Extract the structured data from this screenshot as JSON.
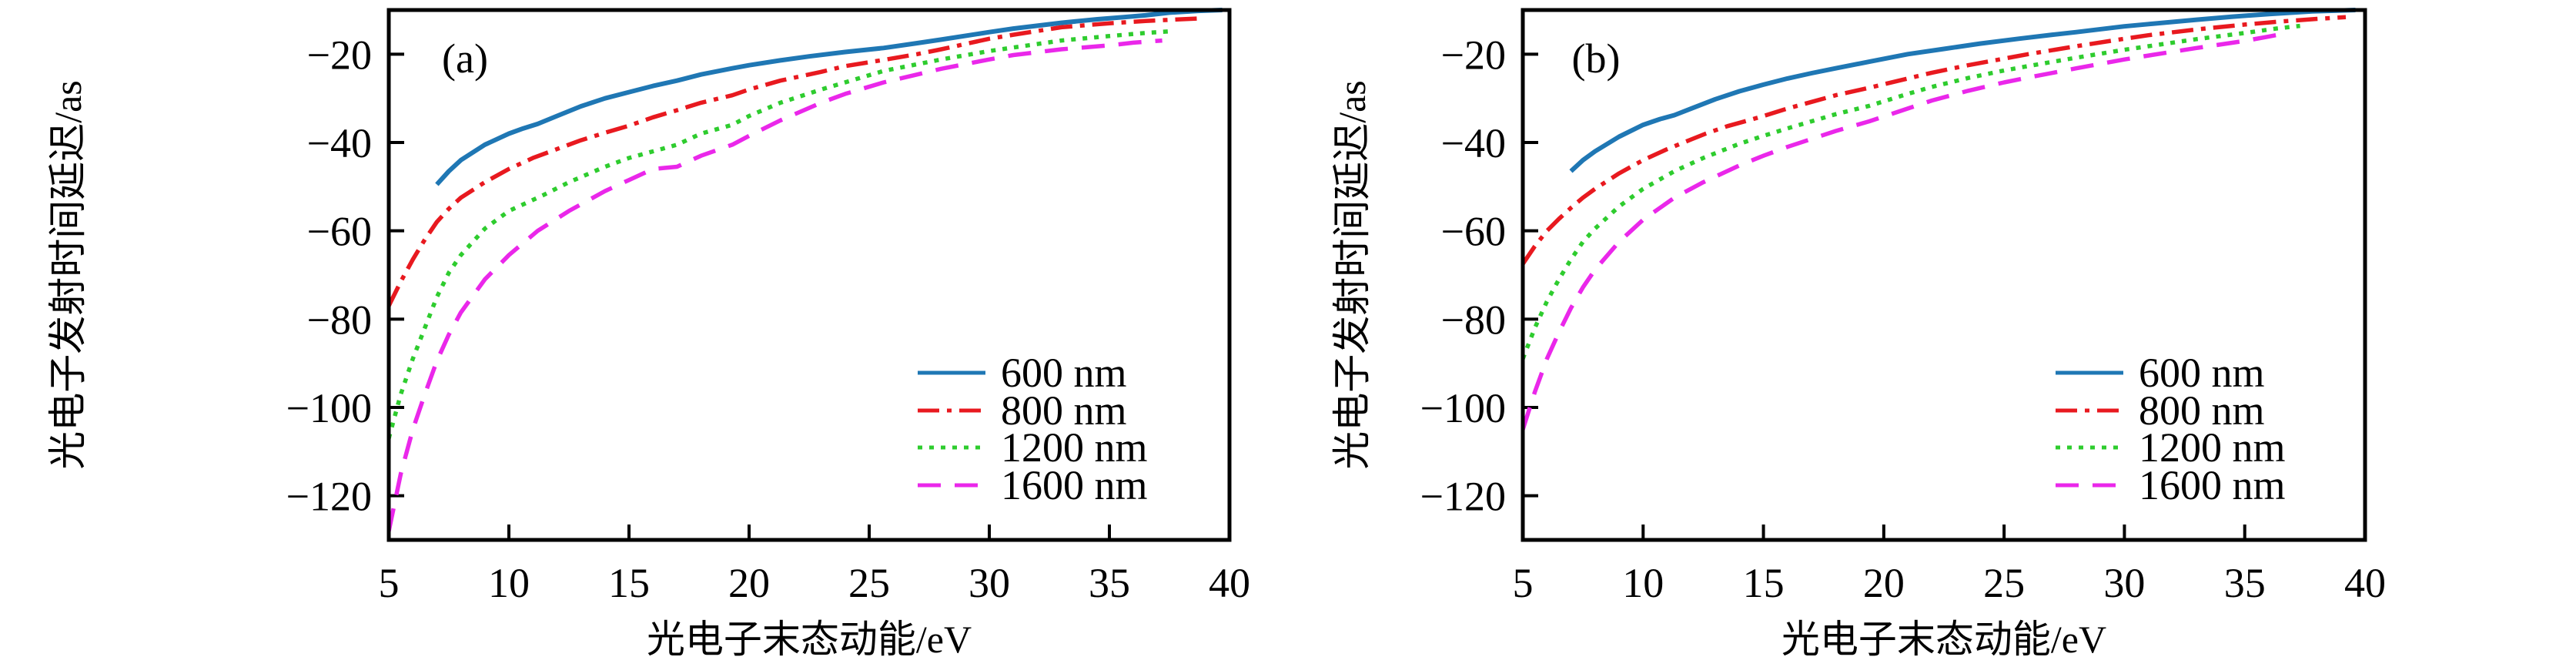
{
  "figure": {
    "background": "#ffffff",
    "text_color": "#000000"
  },
  "chart_data": [
    {
      "panel_label": "(a)",
      "type": "line",
      "xlabel": "光电子末态动能/eV",
      "ylabel": "光电子发射时间延迟/as",
      "xlim": [
        5,
        40
      ],
      "ylim": [
        -130,
        -10
      ],
      "xticks": [
        5,
        10,
        15,
        20,
        25,
        30,
        35,
        40
      ],
      "yticks": [
        -20,
        -40,
        -60,
        -80,
        -100,
        -120
      ],
      "grid": false,
      "legend": {
        "position": "right-center"
      },
      "series": [
        {
          "name": "600 nm",
          "color": "#1f77b4",
          "line_style": "solid",
          "points": [
            [
              7,
              -49.5
            ],
            [
              7.5,
              -46.5
            ],
            [
              8,
              -44
            ],
            [
              9,
              -40.5
            ],
            [
              10,
              -38
            ],
            [
              10.6,
              -36.8
            ],
            [
              11.2,
              -35.8
            ],
            [
              12,
              -34
            ],
            [
              13,
              -31.8
            ],
            [
              14,
              -30
            ],
            [
              15,
              -28.6
            ],
            [
              16,
              -27.2
            ],
            [
              17,
              -26
            ],
            [
              18,
              -24.6
            ],
            [
              19.3,
              -23.2
            ],
            [
              20,
              -22.5
            ],
            [
              21.3,
              -21.4
            ],
            [
              22.5,
              -20.5
            ],
            [
              24,
              -19.5
            ],
            [
              25.6,
              -18.6
            ],
            [
              27,
              -17.5
            ],
            [
              28,
              -16.7
            ],
            [
              30,
              -15
            ],
            [
              31,
              -14.2
            ],
            [
              33,
              -12.9
            ],
            [
              34.5,
              -12.1
            ],
            [
              35.6,
              -11.6
            ],
            [
              36.5,
              -11.2
            ],
            [
              37.5,
              -10.6
            ],
            [
              38.7,
              -10.2
            ],
            [
              39.7,
              -10
            ]
          ]
        },
        {
          "name": "800 nm",
          "color": "#e8191f",
          "line_style": "dashdot",
          "points": [
            [
              5,
              -77
            ],
            [
              5.5,
              -71.5
            ],
            [
              6,
              -66.5
            ],
            [
              6.5,
              -62
            ],
            [
              7,
              -58
            ],
            [
              7.5,
              -55
            ],
            [
              8,
              -52.5
            ],
            [
              9,
              -49
            ],
            [
              10,
              -46
            ],
            [
              11,
              -43.5
            ],
            [
              12,
              -41.5
            ],
            [
              13,
              -39.5
            ],
            [
              14,
              -37.8
            ],
            [
              15,
              -36.2
            ],
            [
              16,
              -34.3
            ],
            [
              17,
              -32.7
            ],
            [
              18,
              -31
            ],
            [
              19.3,
              -29.3
            ],
            [
              20,
              -28
            ],
            [
              21.3,
              -26
            ],
            [
              23,
              -24
            ],
            [
              24,
              -22.7
            ],
            [
              25.6,
              -21.3
            ],
            [
              27,
              -20
            ],
            [
              28,
              -18.9
            ],
            [
              30,
              -16.5
            ],
            [
              31,
              -15.6
            ],
            [
              33,
              -13.9
            ],
            [
              35,
              -13
            ],
            [
              36.5,
              -12.5
            ],
            [
              38,
              -12.1
            ],
            [
              38.8,
              -11.9
            ]
          ]
        },
        {
          "name": "1200 nm",
          "color": "#2ecc2e",
          "line_style": "dotted",
          "points": [
            [
              5,
              -107
            ],
            [
              5.5,
              -97
            ],
            [
              6,
              -89
            ],
            [
              6.5,
              -82
            ],
            [
              7,
              -75
            ],
            [
              7.5,
              -69.5
            ],
            [
              8,
              -65.5
            ],
            [
              9,
              -59.5
            ],
            [
              10,
              -55.5
            ],
            [
              11.4,
              -52
            ],
            [
              12.5,
              -49
            ],
            [
              14,
              -45.5
            ],
            [
              15,
              -43.5
            ],
            [
              16,
              -42
            ],
            [
              17,
              -40.5
            ],
            [
              18,
              -38
            ],
            [
              19.3,
              -36
            ],
            [
              20,
              -34
            ],
            [
              21.3,
              -31
            ],
            [
              23,
              -28
            ],
            [
              25.6,
              -23.8
            ],
            [
              28,
              -21.2
            ],
            [
              30,
              -19.3
            ],
            [
              31,
              -18.5
            ],
            [
              33,
              -16.9
            ],
            [
              35,
              -15.9
            ],
            [
              36.5,
              -15.2
            ],
            [
              37.6,
              -14.8
            ]
          ]
        },
        {
          "name": "1600 nm",
          "color": "#ea27ea",
          "line_style": "dashed",
          "points": [
            [
              5,
              -128
            ],
            [
              5.5,
              -115
            ],
            [
              6,
              -105
            ],
            [
              6.5,
              -97
            ],
            [
              7,
              -89.5
            ],
            [
              7.5,
              -83.5
            ],
            [
              8,
              -78.5
            ],
            [
              9,
              -71
            ],
            [
              10,
              -65.5
            ],
            [
              11.2,
              -60
            ],
            [
              12.5,
              -55.5
            ],
            [
              14,
              -51
            ],
            [
              15,
              -48.5
            ],
            [
              16,
              -46
            ],
            [
              17,
              -45.5
            ],
            [
              18,
              -43
            ],
            [
              19.3,
              -40.5
            ],
            [
              20,
              -38.5
            ],
            [
              21.3,
              -35
            ],
            [
              23,
              -31
            ],
            [
              24,
              -29
            ],
            [
              25.6,
              -26.4
            ],
            [
              28,
              -23.3
            ],
            [
              30,
              -21.2
            ],
            [
              31,
              -20.2
            ],
            [
              33,
              -18.9
            ],
            [
              35,
              -18
            ],
            [
              36,
              -17.4
            ],
            [
              37.2,
              -16.9
            ]
          ]
        }
      ]
    },
    {
      "panel_label": "(b)",
      "type": "line",
      "xlabel": "光电子末态动能/eV",
      "ylabel": "光电子发射时间延迟/as",
      "xlim": [
        5,
        40
      ],
      "ylim": [
        -130,
        -10
      ],
      "xticks": [
        5,
        10,
        15,
        20,
        25,
        30,
        35,
        40
      ],
      "yticks": [
        -20,
        -40,
        -60,
        -80,
        -100,
        -120
      ],
      "grid": false,
      "legend": {
        "position": "right-center"
      },
      "series": [
        {
          "name": "600 nm",
          "color": "#1f77b4",
          "line_style": "solid",
          "points": [
            [
              7,
              -46.5
            ],
            [
              7.5,
              -44
            ],
            [
              8,
              -42
            ],
            [
              9,
              -38.7
            ],
            [
              10,
              -36
            ],
            [
              10.7,
              -34.7
            ],
            [
              11.3,
              -33.8
            ],
            [
              12,
              -32.3
            ],
            [
              13,
              -30.2
            ],
            [
              14,
              -28.4
            ],
            [
              15,
              -26.9
            ],
            [
              16,
              -25.5
            ],
            [
              17,
              -24.3
            ],
            [
              18,
              -23.2
            ],
            [
              19.4,
              -21.7
            ],
            [
              21,
              -20
            ],
            [
              22.5,
              -18.8
            ],
            [
              24,
              -17.6
            ],
            [
              25.6,
              -16.5
            ],
            [
              27,
              -15.6
            ],
            [
              28,
              -15
            ],
            [
              30,
              -13.7
            ],
            [
              31,
              -13.2
            ],
            [
              33,
              -12.2
            ],
            [
              34.5,
              -11.5
            ],
            [
              36,
              -10.9
            ],
            [
              37.8,
              -10.3
            ],
            [
              39.6,
              -10
            ]
          ]
        },
        {
          "name": "800 nm",
          "color": "#e8191f",
          "line_style": "dashdot",
          "points": [
            [
              5,
              -67.5
            ],
            [
              5.5,
              -63.5
            ],
            [
              6,
              -60
            ],
            [
              6.5,
              -57.3
            ],
            [
              7,
              -54.8
            ],
            [
              7.5,
              -52.5
            ],
            [
              8,
              -50.5
            ],
            [
              9,
              -47
            ],
            [
              10,
              -44
            ],
            [
              11,
              -41.5
            ],
            [
              12,
              -39.3
            ],
            [
              12.6,
              -38
            ],
            [
              13.5,
              -36.3
            ],
            [
              14.5,
              -34.8
            ],
            [
              15,
              -34
            ],
            [
              16,
              -32.3
            ],
            [
              17,
              -30.8
            ],
            [
              18,
              -29.3
            ],
            [
              19.4,
              -27.6
            ],
            [
              21,
              -25.5
            ],
            [
              22,
              -24.2
            ],
            [
              23.5,
              -22.5
            ],
            [
              25,
              -21
            ],
            [
              26,
              -20
            ],
            [
              28,
              -18.2
            ],
            [
              30,
              -16.5
            ],
            [
              31,
              -15.7
            ],
            [
              33,
              -14.4
            ],
            [
              35,
              -13.3
            ],
            [
              36.5,
              -12.6
            ],
            [
              38,
              -12
            ],
            [
              39.2,
              -11.6
            ]
          ]
        },
        {
          "name": "1200 nm",
          "color": "#2ecc2e",
          "line_style": "dotted",
          "points": [
            [
              5,
              -89
            ],
            [
              5.5,
              -82
            ],
            [
              6,
              -76
            ],
            [
              6.5,
              -71
            ],
            [
              7,
              -66.5
            ],
            [
              7.5,
              -62.5
            ],
            [
              8,
              -59.5
            ],
            [
              9,
              -54.5
            ],
            [
              10,
              -50.5
            ],
            [
              11.3,
              -46.5
            ],
            [
              12.5,
              -43.5
            ],
            [
              14,
              -40.3
            ],
            [
              15,
              -38.5
            ],
            [
              16,
              -36.8
            ],
            [
              17,
              -35.2
            ],
            [
              18,
              -33.6
            ],
            [
              19.4,
              -31.7
            ],
            [
              21,
              -29
            ],
            [
              22,
              -27.4
            ],
            [
              23.5,
              -25.4
            ],
            [
              25,
              -23.7
            ],
            [
              26,
              -22.7
            ],
            [
              28,
              -20.8
            ],
            [
              30,
              -19
            ],
            [
              31,
              -18.2
            ],
            [
              33,
              -16.6
            ],
            [
              35,
              -15.2
            ],
            [
              36.3,
              -14.2
            ],
            [
              37.3,
              -13.6
            ]
          ]
        },
        {
          "name": "1600 nm",
          "color": "#ea27ea",
          "line_style": "dashed",
          "points": [
            [
              5,
              -105
            ],
            [
              5.5,
              -96.5
            ],
            [
              6,
              -89
            ],
            [
              6.5,
              -83
            ],
            [
              7,
              -77.5
            ],
            [
              7.5,
              -72.8
            ],
            [
              8,
              -68.8
            ],
            [
              9,
              -62.5
            ],
            [
              10,
              -57.5
            ],
            [
              11.3,
              -52.5
            ],
            [
              12.5,
              -49
            ],
            [
              14,
              -45.2
            ],
            [
              15,
              -43
            ],
            [
              16,
              -41
            ],
            [
              17,
              -39.2
            ],
            [
              18,
              -37.4
            ],
            [
              19.4,
              -35.2
            ],
            [
              21,
              -32.3
            ],
            [
              22,
              -30.5
            ],
            [
              23.5,
              -28.3
            ],
            [
              25,
              -26.4
            ],
            [
              26,
              -25.3
            ],
            [
              28,
              -23.2
            ],
            [
              30,
              -21.2
            ],
            [
              31,
              -20.3
            ],
            [
              33,
              -18.6
            ],
            [
              35,
              -17
            ],
            [
              36,
              -16
            ],
            [
              36.8,
              -15.2
            ]
          ]
        }
      ]
    }
  ]
}
